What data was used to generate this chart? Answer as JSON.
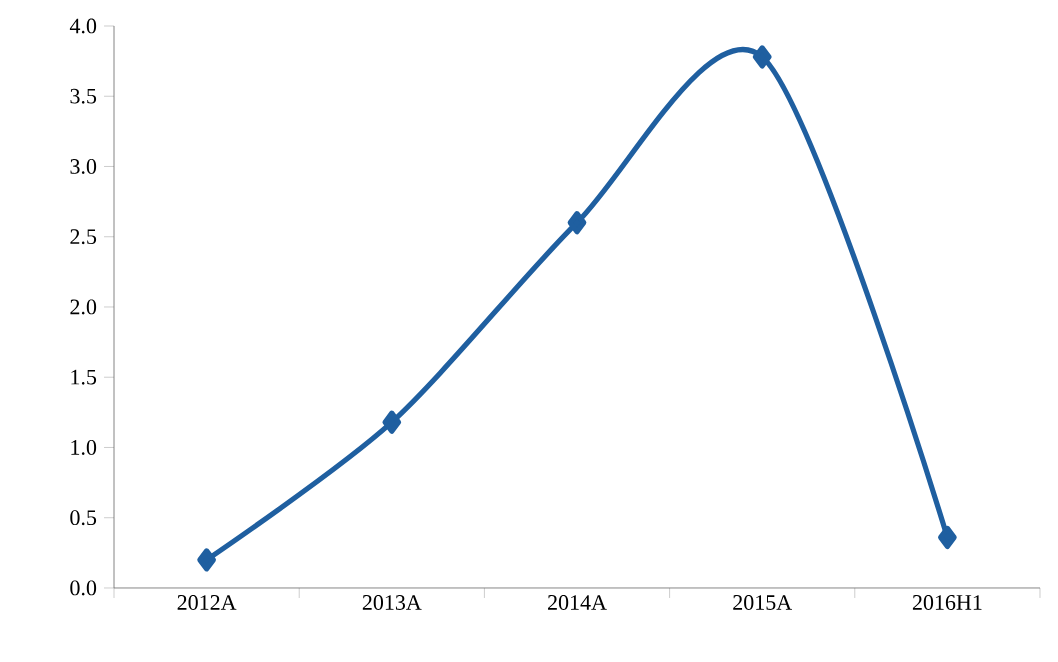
{
  "chart_data": {
    "type": "line",
    "categories": [
      "2012A",
      "2013A",
      "2014A",
      "2015A",
      "2016H1"
    ],
    "series": [
      {
        "color": "#1f5fa0",
        "values": [
          0.2,
          1.18,
          2.6,
          3.78,
          0.36
        ]
      }
    ],
    "ylim": [
      0,
      4
    ],
    "yticks": [
      {
        "value": 0,
        "label": "0.0"
      },
      {
        "value": 0.5,
        "label": "0.5"
      },
      {
        "value": 1,
        "label": "1.0"
      },
      {
        "value": 1.5,
        "label": "1.5"
      },
      {
        "value": 2,
        "label": "2.0"
      },
      {
        "value": 2.5,
        "label": "2.5"
      },
      {
        "value": 3,
        "label": "3.0"
      },
      {
        "value": 3.5,
        "label": "3.5"
      },
      {
        "value": 4,
        "label": "4.0"
      }
    ],
    "grid": false,
    "marker": "diamond",
    "line_style": "solid"
  }
}
